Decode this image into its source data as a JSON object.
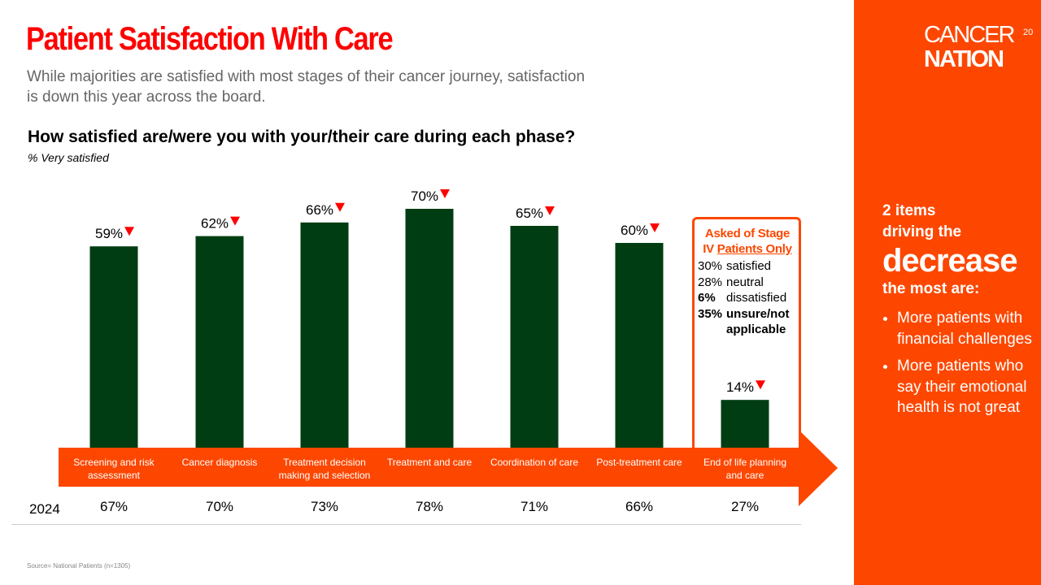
{
  "title": "Patient Satisfaction With Care",
  "subtitle": "While majorities are satisfied with most stages of their cancer journey, satisfaction is down this year across the board.",
  "question": "How satisfied are/were you with your/their care during each phase?",
  "question_sub": "% Very satisfied",
  "logo": {
    "line1": "CANCER",
    "line2": "NATION"
  },
  "page_number": "20",
  "colors": {
    "bar": "#003d12",
    "accent": "#fd4700",
    "title": "#ff0000",
    "down_arrow": "#ff0000"
  },
  "chart_data": {
    "type": "bar",
    "categories": [
      "Screening and risk assessment",
      "Cancer diagnosis",
      "Treatment decision making and selection",
      "Treatment and care",
      "Coordination of care",
      "Post-treatment care",
      "End of life planning and care"
    ],
    "category_lines": [
      [
        "Screening and risk",
        "assessment"
      ],
      [
        "Cancer diagnosis"
      ],
      [
        "Treatment decision",
        "making and selection"
      ],
      [
        "Treatment and care"
      ],
      [
        "Coordination of care"
      ],
      [
        "Post-treatment care"
      ],
      [
        "End of life planning",
        "and care"
      ]
    ],
    "values": [
      59,
      62,
      66,
      70,
      65,
      60,
      14
    ],
    "labels": [
      "59%",
      "62%",
      "66%",
      "70%",
      "65%",
      "60%",
      "14%"
    ],
    "trend": "down",
    "ylim": [
      0,
      100
    ],
    "comparison": {
      "label": "2024",
      "values": [
        "67%",
        "70%",
        "73%",
        "78%",
        "71%",
        "66%",
        "27%"
      ]
    }
  },
  "callout": {
    "heading1": "Asked of Stage",
    "heading2a": "IV ",
    "heading2b": "Patients Only",
    "rows": [
      {
        "pct": "30%",
        "label": "satisfied",
        "bold": false
      },
      {
        "pct": "28%",
        "label": "neutral",
        "bold": false
      },
      {
        "pct": "6%",
        "label": "dissatisfied",
        "bold": "pct"
      },
      {
        "pct": "35%",
        "label": "unsure/not applicable",
        "bold": true
      }
    ]
  },
  "drivers": {
    "line1": "2 items",
    "line2": "driving the",
    "big": "decrease",
    "line3": "the most are:",
    "items": [
      "More patients with financial challenges",
      "More patients who say their emotional health is not great"
    ]
  },
  "source": "Source= National Patients (n=1305)"
}
